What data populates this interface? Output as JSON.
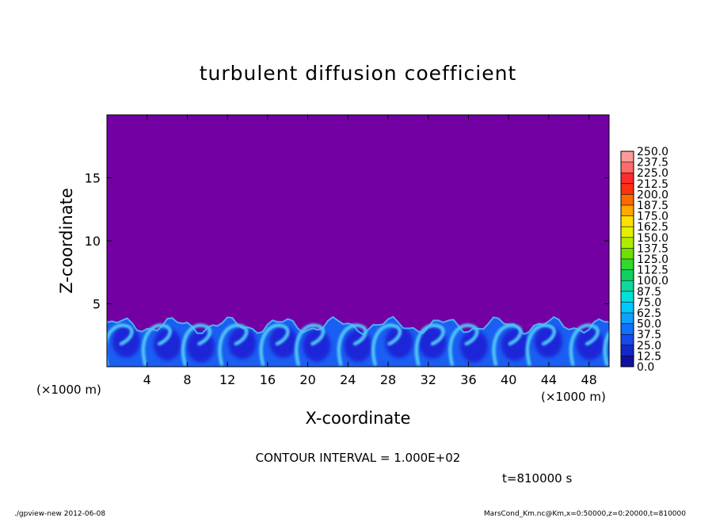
{
  "chart_data": {
    "type": "heatmap",
    "title": "turbulent diffusion coefficient",
    "xlabel": "X-coordinate",
    "ylabel": "Z-coordinate",
    "x_unit_left": "(×1000 m)",
    "x_unit_right": "(×1000 m)",
    "xlim": [
      0,
      50
    ],
    "ylim": [
      0,
      20
    ],
    "x_ticks": [
      4,
      8,
      12,
      16,
      20,
      24,
      28,
      32,
      36,
      40,
      44,
      48
    ],
    "x_tick_labels": [
      "4",
      "8",
      "12",
      "16",
      "20",
      "24",
      "28",
      "32",
      "36",
      "40",
      "44",
      "48"
    ],
    "y_ticks": [
      5,
      10,
      15
    ],
    "y_tick_labels": [
      "5",
      "10",
      "15"
    ],
    "contour_interval": "CONTOUR INTERVAL = 1.000E+02",
    "time_label": "t=810000 s",
    "background_value": 0.0,
    "mixed_layer_top_approx": 4.0,
    "mixed_layer_peak_value_approx": 80,
    "colorbar": {
      "levels": [
        "250.0",
        "237.5",
        "225.0",
        "212.5",
        "200.0",
        "187.5",
        "175.0",
        "162.5",
        "150.0",
        "137.5",
        "125.0",
        "112.5",
        "100.0",
        "87.5",
        "75.0",
        "62.5",
        "50.0",
        "37.5",
        "25.0",
        "12.5",
        "0.0"
      ],
      "colors": [
        "#ff9a9a",
        "#ff6a6a",
        "#ff2c2c",
        "#ff3010",
        "#ff6a00",
        "#ffa800",
        "#ffe000",
        "#e4f000",
        "#b0ec00",
        "#70e000",
        "#30d830",
        "#10d060",
        "#10d8a0",
        "#00e0d8",
        "#00c8ff",
        "#10a0ff",
        "#1070ff",
        "#1848f0",
        "#1428c8",
        "#1010a0",
        "#6a00a0"
      ]
    }
  },
  "footer": {
    "left": "./gpview-new   2012-06-08",
    "right": "MarsCond_Km.nc@Km,x=0:50000,z=0:20000,t=810000"
  },
  "colors": {
    "field_background": "#7300a3",
    "cell_dark": "#1e28d8",
    "cell_mid": "#1a5ef2",
    "plume_bright": "#4fc6f7"
  }
}
